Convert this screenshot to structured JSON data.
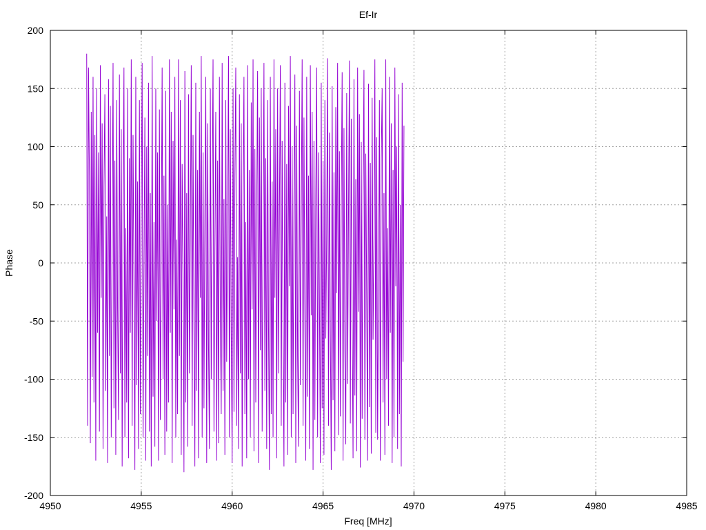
{
  "chart_data": {
    "type": "line",
    "title": "Ef-Ir",
    "xlabel": "Freq [MHz]",
    "ylabel": "Phase",
    "xlim": [
      4950,
      4985
    ],
    "ylim": [
      -200,
      200
    ],
    "xticks": [
      4950,
      4955,
      4960,
      4965,
      4970,
      4975,
      4980,
      4985
    ],
    "yticks": [
      -200,
      -150,
      -100,
      -50,
      0,
      50,
      100,
      150,
      200
    ],
    "grid": true,
    "legend": "none",
    "series": [
      {
        "color": "#9400d3",
        "x_start": 4952.0,
        "x_step": 0.05,
        "y": [
          180,
          -140,
          168,
          75,
          -155,
          130,
          -98,
          160,
          -120,
          110,
          -170,
          150,
          -60,
          95,
          -145,
          170,
          -30,
          120,
          -160,
          65,
          145,
          -110,
          40,
          -172,
          158,
          -80,
          135,
          -150,
          20,
          172,
          -125,
          88,
          -165,
          140,
          -40,
          -135,
          162,
          -95,
          115,
          -175,
          55,
          168,
          -150,
          30,
          -120,
          150,
          -168,
          90,
          -60,
          175,
          -140,
          110,
          -20,
          -178,
          160,
          -105,
          70,
          -160,
          140,
          -130,
          45,
          172,
          -150,
          -10,
          125,
          -170,
          100,
          -80,
          155,
          -145,
          60,
          -175,
          178,
          -115,
          35,
          -158,
          150,
          -50,
          95,
          -170,
          132,
          -135,
          15,
          168,
          -100,
          75,
          -165,
          148,
          -145,
          50,
          -120,
          175,
          -60,
          130,
          -172,
          105,
          -40,
          160,
          -150,
          20,
          -130,
          175,
          -80,
          140,
          -165,
          85,
          -10,
          -180,
          165,
          -120,
          60,
          -158,
          145,
          -95,
          25,
          170,
          -140,
          110,
          -55,
          -175,
          155,
          -110,
          80,
          -168,
          130,
          -30,
          178,
          -150,
          95,
          -125,
          40,
          160,
          -172,
          120,
          -70,
          -160,
          150,
          -100,
          65,
          175,
          -145,
          10,
          130,
          -170,
          88,
          -155,
          160,
          -45,
          -130,
          172,
          -110,
          55,
          -165,
          140,
          -85,
          30,
          178,
          -150,
          115,
          -60,
          -172,
          150,
          -128,
          75,
          168,
          -140,
          5,
          -160,
          145,
          -95,
          120,
          -175,
          60,
          160,
          -130,
          35,
          -168,
          170,
          -100,
          80,
          -150,
          138,
          -40,
          175,
          -162,
          98,
          -120,
          50,
          165,
          -172,
          125,
          -75,
          150,
          -145,
          20,
          172,
          -110,
          90,
          -160,
          140,
          -55,
          -178,
          160,
          -130,
          70,
          -150,
          175,
          -30,
          115,
          -168,
          150,
          -95,
          45,
          170,
          -140,
          105,
          -60,
          -175,
          155,
          -120,
          85,
          -165,
          135,
          -20,
          178,
          -150,
          100,
          -130,
          55,
          162,
          -172,
          118,
          -80,
          -158,
          148,
          -105,
          40,
          175,
          -140,
          125,
          -50,
          -170,
          160,
          -115,
          75,
          -160,
          170,
          -45,
          130,
          -178,
          105,
          -135,
          60,
          168,
          -150,
          95,
          -30,
          -172,
          155,
          -125,
          88,
          -165,
          140,
          -65,
          25,
          176,
          -140,
          112,
          -58,
          -178,
          152,
          -118,
          78,
          -162,
          134,
          -26,
          172,
          -148,
          96,
          -132,
          52,
          164,
          -170,
          116,
          -76,
          -156,
          146,
          -104,
          42,
          174,
          -138,
          124,
          -48,
          -168,
          158,
          -114,
          72,
          -162,
          168,
          -42,
          128,
          -176,
          104,
          -134,
          58,
          166,
          -152,
          94,
          -28,
          -170,
          154,
          -124,
          86,
          -164,
          142,
          -66,
          22,
          175,
          -146,
          108,
          -152,
          -30,
          140,
          -170,
          90,
          150,
          -120,
          60,
          -165,
          175,
          -100,
          30,
          -140,
          160,
          -60,
          120,
          -172,
          80,
          -150,
          168,
          -20,
          100,
          -160,
          145,
          -130,
          50,
          -175,
          155,
          -85,
          118
        ]
      }
    ]
  }
}
